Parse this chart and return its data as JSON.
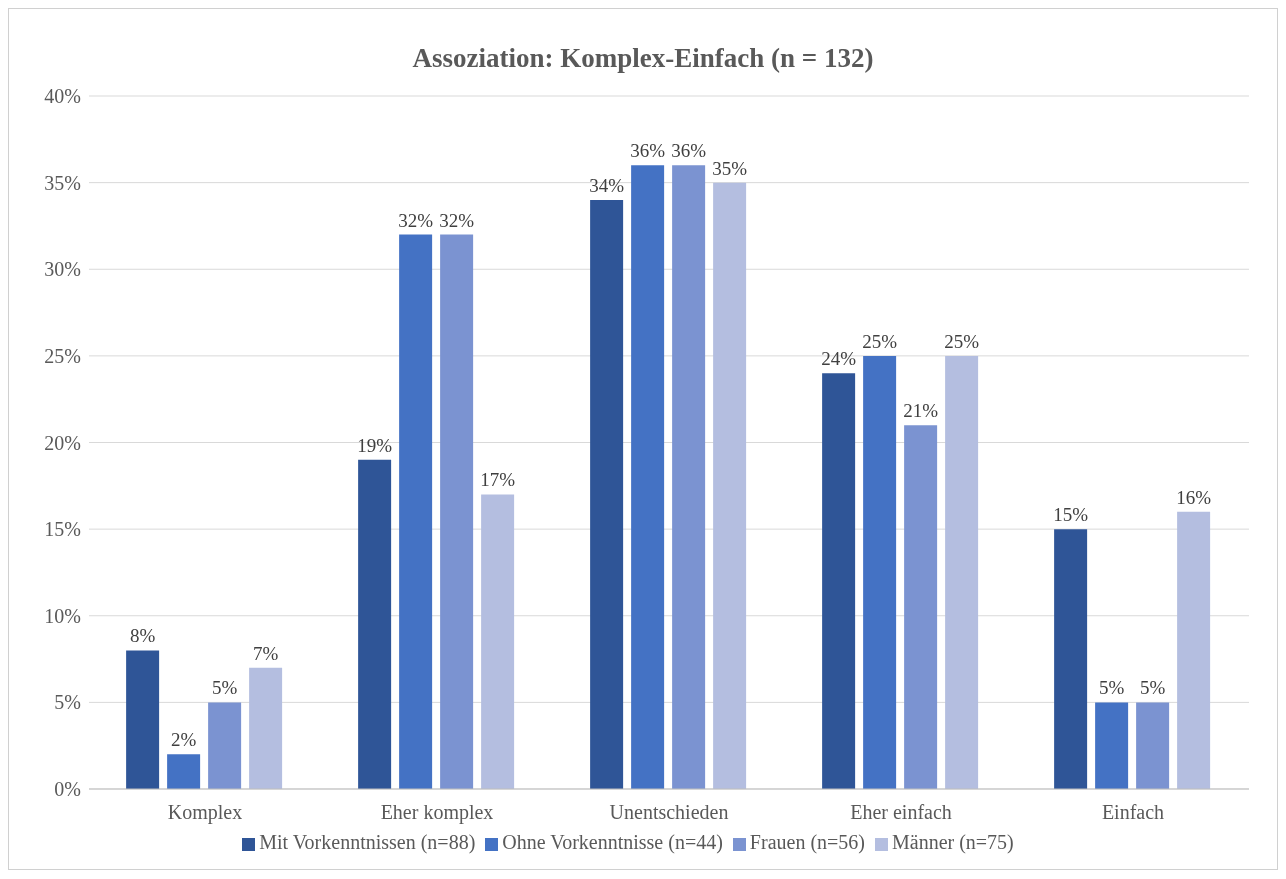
{
  "chart_data": {
    "type": "bar",
    "title": "Assoziation: Komplex-Einfach (n = 132)",
    "categories": [
      "Komplex",
      "Eher komplex",
      "Unentschieden",
      "Eher einfach",
      "Einfach"
    ],
    "series": [
      {
        "name": "Mit Vorkenntnissen (n=88)",
        "color": "#2f5597",
        "values": [
          8,
          19,
          34,
          24,
          15
        ],
        "value_labels": [
          "8%",
          "19%",
          "34%",
          "24%",
          "15%"
        ]
      },
      {
        "name": "Ohne Vorkenntnisse (n=44)",
        "color": "#4472c4",
        "values": [
          2,
          32,
          36,
          25,
          5
        ],
        "value_labels": [
          "2%",
          "32%",
          "36%",
          "25%",
          "5%"
        ]
      },
      {
        "name": "Frauen (n=56)",
        "color": "#7b93d1",
        "values": [
          5,
          32,
          36,
          21,
          5
        ],
        "value_labels": [
          "5%",
          "32%",
          "36%",
          "21%",
          "5%"
        ]
      },
      {
        "name": "Männer (n=75)",
        "color": "#b4bee0",
        "values": [
          7,
          17,
          35,
          25,
          16
        ],
        "value_labels": [
          "7%",
          "17%",
          "35%",
          "25%",
          "16%"
        ]
      }
    ],
    "ylim": [
      0,
      40
    ],
    "yticks": [
      {
        "value": 0,
        "label": "0%"
      },
      {
        "value": 5,
        "label": "5%"
      },
      {
        "value": 10,
        "label": "10%"
      },
      {
        "value": 15,
        "label": "15%"
      },
      {
        "value": 20,
        "label": "20%"
      },
      {
        "value": 25,
        "label": "25%"
      },
      {
        "value": 30,
        "label": "30%"
      },
      {
        "value": 35,
        "label": "35%"
      },
      {
        "value": 40,
        "label": "40%"
      }
    ],
    "grid": "y",
    "legend": "bottom"
  }
}
